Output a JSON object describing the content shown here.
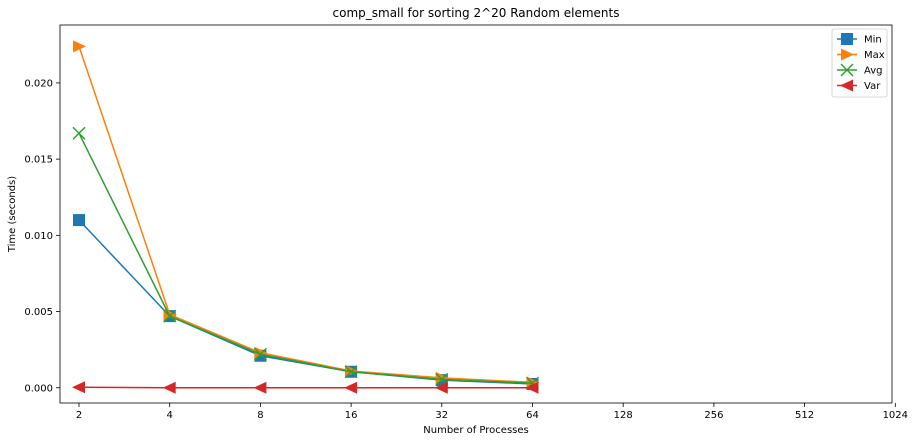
{
  "chart_data": {
    "type": "line",
    "title": "comp_small for sorting 2^20 Random elements",
    "xlabel": "Number of Processes",
    "ylabel": "Time (seconds)",
    "x_scale": "log2",
    "x_ticks": [
      "2",
      "4",
      "8",
      "16",
      "32",
      "64",
      "128",
      "256",
      "512",
      "1024"
    ],
    "y_ticks": [
      "0.000",
      "0.005",
      "0.010",
      "0.015",
      "0.020"
    ],
    "y_tick_values": [
      0,
      0.005,
      0.01,
      0.015,
      0.02
    ],
    "ylim": [
      -0.001,
      0.0238
    ],
    "x": [
      2,
      4,
      8,
      16,
      32,
      64
    ],
    "series": [
      {
        "name": "Min",
        "color": "#1f77b4",
        "marker": "square",
        "values": [
          0.011,
          0.0047,
          0.0021,
          0.00105,
          0.0005,
          0.00025
        ]
      },
      {
        "name": "Max",
        "color": "#ff7f0e",
        "marker": "triangle-right",
        "values": [
          0.0224,
          0.0048,
          0.0023,
          0.0011,
          0.00065,
          0.00035
        ]
      },
      {
        "name": "Avg",
        "color": "#2ca02c",
        "marker": "x",
        "values": [
          0.0167,
          0.0047,
          0.0022,
          0.00105,
          0.00055,
          0.0003
        ]
      },
      {
        "name": "Var",
        "color": "#d62728",
        "marker": "triangle-left",
        "values": [
          3e-05,
          0.0,
          0.0,
          0.0,
          0.0,
          0.0
        ]
      }
    ],
    "legend_position": "top-right",
    "grid": false
  }
}
